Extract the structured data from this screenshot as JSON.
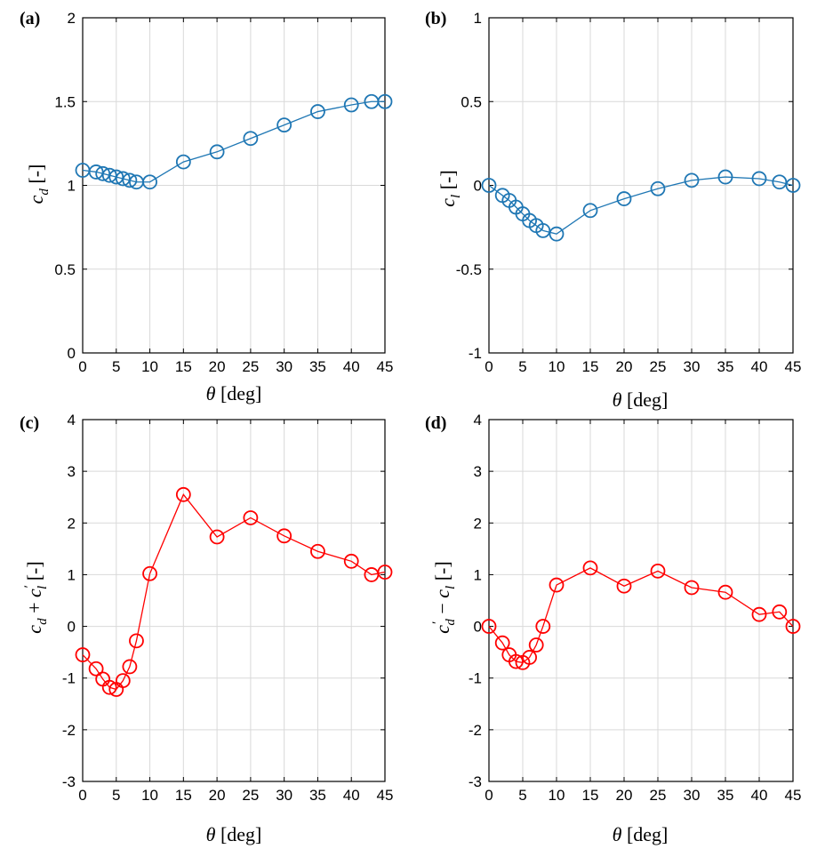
{
  "chart_data": [
    {
      "type": "line",
      "panel": "(a)",
      "color": "#1f77b4",
      "xlabel": "θ [deg]",
      "ylabel": "c_d [-]",
      "xlim": [
        0,
        45
      ],
      "ylim": [
        0,
        2
      ],
      "xticks": [
        0,
        5,
        10,
        15,
        20,
        25,
        30,
        35,
        40,
        45
      ],
      "yticks": [
        0,
        0.5,
        1,
        1.5,
        2
      ],
      "grid": true,
      "x": [
        0,
        2,
        3,
        4,
        5,
        6,
        7,
        8,
        10,
        15,
        20,
        25,
        30,
        35,
        40,
        43,
        45
      ],
      "y": [
        1.09,
        1.08,
        1.07,
        1.06,
        1.05,
        1.04,
        1.03,
        1.02,
        1.02,
        1.14,
        1.2,
        1.28,
        1.36,
        1.44,
        1.48,
        1.5,
        1.5
      ]
    },
    {
      "type": "line",
      "panel": "(b)",
      "color": "#1f77b4",
      "xlabel": "θ [deg]",
      "ylabel": "c_l [-]",
      "xlim": [
        0,
        45
      ],
      "ylim": [
        -1,
        1
      ],
      "xticks": [
        0,
        5,
        10,
        15,
        20,
        25,
        30,
        35,
        40,
        45
      ],
      "yticks": [
        -1,
        -0.5,
        0,
        0.5,
        1
      ],
      "grid": true,
      "x": [
        0,
        2,
        3,
        4,
        5,
        6,
        7,
        8,
        10,
        15,
        20,
        25,
        30,
        35,
        40,
        43,
        45
      ],
      "y": [
        0.0,
        -0.06,
        -0.09,
        -0.13,
        -0.17,
        -0.21,
        -0.24,
        -0.27,
        -0.29,
        -0.15,
        -0.08,
        -0.02,
        0.03,
        0.05,
        0.04,
        0.02,
        0.0
      ]
    },
    {
      "type": "line",
      "panel": "(c)",
      "color": "#ff0000",
      "xlabel": "θ [deg]",
      "ylabel": "c_d + c'_l [-]",
      "xlim": [
        0,
        45
      ],
      "ylim": [
        -3,
        4
      ],
      "xticks": [
        0,
        5,
        10,
        15,
        20,
        25,
        30,
        35,
        40,
        45
      ],
      "yticks": [
        -3,
        -2,
        -1,
        0,
        1,
        2,
        3,
        4
      ],
      "grid": true,
      "x": [
        0,
        2,
        3,
        4,
        5,
        6,
        7,
        8,
        10,
        15,
        20,
        25,
        30,
        35,
        40,
        43,
        45
      ],
      "y": [
        -0.55,
        -0.82,
        -1.02,
        -1.18,
        -1.22,
        -1.05,
        -0.78,
        -0.28,
        1.02,
        2.55,
        1.73,
        2.1,
        1.75,
        1.45,
        1.26,
        1.0,
        1.05
      ]
    },
    {
      "type": "line",
      "panel": "(d)",
      "color": "#ff0000",
      "xlabel": "θ [deg]",
      "ylabel": "c'_d − c_l [-]",
      "xlim": [
        0,
        45
      ],
      "ylim": [
        -3,
        4
      ],
      "xticks": [
        0,
        5,
        10,
        15,
        20,
        25,
        30,
        35,
        40,
        45
      ],
      "yticks": [
        -3,
        -2,
        -1,
        0,
        1,
        2,
        3,
        4
      ],
      "grid": true,
      "x": [
        0,
        2,
        3,
        4,
        5,
        6,
        7,
        8,
        10,
        15,
        20,
        25,
        30,
        35,
        40,
        43,
        45
      ],
      "y": [
        0.0,
        -0.32,
        -0.55,
        -0.68,
        -0.7,
        -0.6,
        -0.36,
        0.0,
        0.8,
        1.13,
        0.78,
        1.07,
        0.75,
        0.66,
        0.23,
        0.28,
        0.0
      ]
    }
  ]
}
